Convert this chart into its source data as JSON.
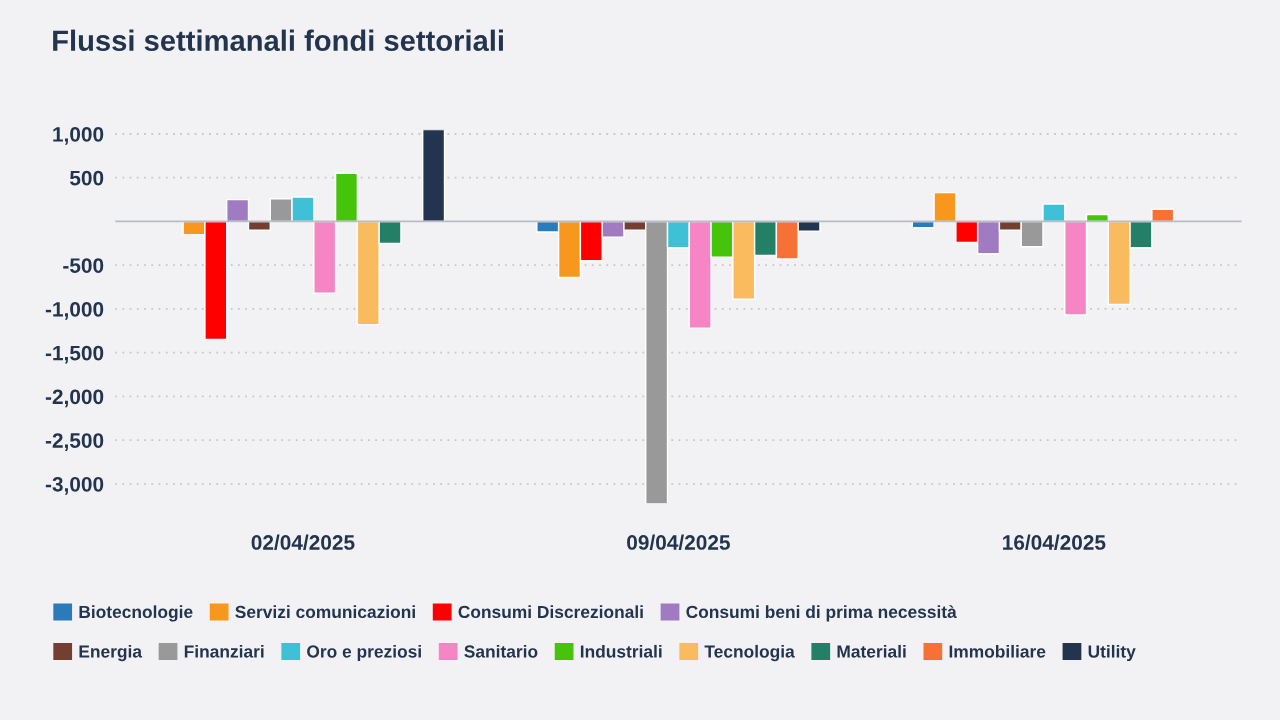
{
  "chart_data": {
    "type": "bar",
    "title": "Flussi settimanali fondi settoriali",
    "categories": [
      "02/04/2025",
      "09/04/2025",
      "16/04/2025"
    ],
    "series": [
      {
        "name": "Biotecnologie",
        "color": "#2b7bba",
        "values": [
          null,
          -120,
          -70
        ]
      },
      {
        "name": "Servizi comunicazioni",
        "color": "#f7971e",
        "values": [
          -150,
          -640,
          330
        ]
      },
      {
        "name": "Consumi Discrezionali",
        "color": "#ff0000",
        "values": [
          -1350,
          -450,
          -240
        ]
      },
      {
        "name": "Consumi beni di prima necessità",
        "color": "#a17bc1",
        "values": [
          250,
          -180,
          -370
        ]
      },
      {
        "name": "Energia",
        "color": "#743f31",
        "values": [
          -100,
          -100,
          -100
        ]
      },
      {
        "name": "Finanziari",
        "color": "#999999",
        "values": [
          260,
          -3230,
          -290
        ]
      },
      {
        "name": "Oro e preziosi",
        "color": "#3ec1d6",
        "values": [
          280,
          -300,
          200
        ]
      },
      {
        "name": "Sanitario",
        "color": "#f585c4",
        "values": [
          -820,
          -1220,
          -1070
        ]
      },
      {
        "name": "Industriali",
        "color": "#46c30b",
        "values": [
          550,
          -410,
          80
        ]
      },
      {
        "name": "Tecnologia",
        "color": "#f9bb5e",
        "values": [
          -1180,
          -890,
          -950
        ]
      },
      {
        "name": "Materiali",
        "color": "#238067",
        "values": [
          -250,
          -390,
          -300
        ]
      },
      {
        "name": "Immobiliare",
        "color": "#f77036",
        "values": [
          null,
          -430,
          140
        ]
      },
      {
        "name": "Utility",
        "color": "#23344e",
        "values": [
          1050,
          -110,
          null
        ]
      }
    ],
    "yticks": [
      {
        "value": 1000,
        "label": "1,000"
      },
      500,
      -500,
      {
        "value": -1000,
        "label": "-1,000"
      },
      {
        "value": -1500,
        "label": "-1,500"
      },
      {
        "value": -2000,
        "label": "-2,000"
      },
      {
        "value": -2500,
        "label": "-2,500"
      },
      {
        "value": -3000,
        "label": "-3,000"
      }
    ],
    "ylim": [
      -3230,
      1050
    ],
    "ref_lines": [
      {
        "axis": "y",
        "value": 0,
        "color": "#b8bcc4"
      }
    ],
    "grid": "y",
    "legend": "bottom"
  }
}
